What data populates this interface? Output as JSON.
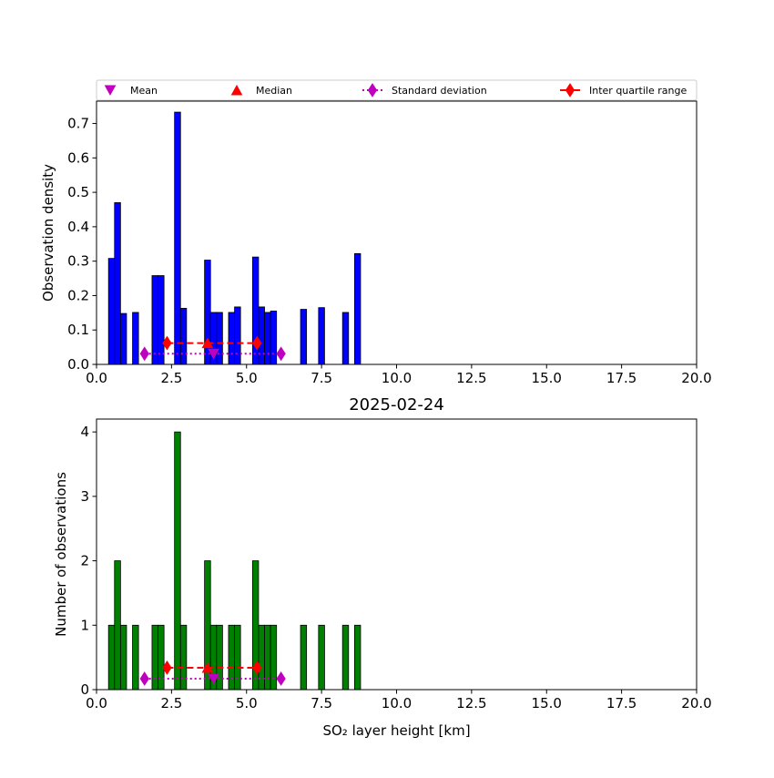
{
  "chart_data": [
    {
      "type": "bar",
      "panel": "top",
      "title": "",
      "xlabel": "",
      "ylabel": "Observation density",
      "xlim": [
        0,
        20
      ],
      "ylim": [
        0,
        0.765
      ],
      "xticks": [
        "0.0",
        "2.5",
        "5.0",
        "7.5",
        "10.0",
        "12.5",
        "15.0",
        "17.5",
        "20.0"
      ],
      "yticks": [
        "0.0",
        "0.1",
        "0.2",
        "0.3",
        "0.4",
        "0.5",
        "0.6",
        "0.7"
      ],
      "ytick_values": [
        0,
        0.1,
        0.2,
        0.3,
        0.4,
        0.5,
        0.6,
        0.7
      ],
      "bar_color": "#0000ff",
      "bars": [
        {
          "x": 0.5,
          "value": 0.308
        },
        {
          "x": 0.7,
          "value": 0.47
        },
        {
          "x": 0.9,
          "value": 0.148
        },
        {
          "x": 1.3,
          "value": 0.151
        },
        {
          "x": 1.95,
          "value": 0.258
        },
        {
          "x": 2.15,
          "value": 0.258
        },
        {
          "x": 2.7,
          "value": 0.733
        },
        {
          "x": 2.9,
          "value": 0.163
        },
        {
          "x": 3.7,
          "value": 0.303
        },
        {
          "x": 3.9,
          "value": 0.151
        },
        {
          "x": 4.1,
          "value": 0.151
        },
        {
          "x": 4.5,
          "value": 0.151
        },
        {
          "x": 4.7,
          "value": 0.167
        },
        {
          "x": 5.3,
          "value": 0.312
        },
        {
          "x": 5.5,
          "value": 0.167
        },
        {
          "x": 5.7,
          "value": 0.151
        },
        {
          "x": 5.9,
          "value": 0.155
        },
        {
          "x": 6.9,
          "value": 0.16
        },
        {
          "x": 7.5,
          "value": 0.165
        },
        {
          "x": 8.3,
          "value": 0.151
        },
        {
          "x": 8.7,
          "value": 0.322
        }
      ],
      "stats": {
        "mean": {
          "x": 3.9,
          "y": 0.031
        },
        "std": {
          "x": [
            1.6,
            6.15
          ],
          "y": 0.031
        },
        "median": {
          "x": 3.7,
          "y": 0.062
        },
        "iqr": {
          "x": [
            2.35,
            5.35
          ],
          "y": 0.062
        }
      }
    },
    {
      "type": "bar",
      "panel": "bottom",
      "title": "2025-02-24",
      "xlabel": "SO₂ layer height [km]",
      "ylabel": "Number of observations",
      "xlim": [
        0,
        20
      ],
      "ylim": [
        0,
        4.2
      ],
      "xticks": [
        "0.0",
        "2.5",
        "5.0",
        "7.5",
        "10.0",
        "12.5",
        "15.0",
        "17.5",
        "20.0"
      ],
      "yticks": [
        "0",
        "1",
        "2",
        "3",
        "4"
      ],
      "ytick_values": [
        0,
        1,
        2,
        3,
        4
      ],
      "bar_color": "#008000",
      "bars": [
        {
          "x": 0.5,
          "value": 1
        },
        {
          "x": 0.7,
          "value": 2
        },
        {
          "x": 0.9,
          "value": 1
        },
        {
          "x": 1.3,
          "value": 1
        },
        {
          "x": 1.95,
          "value": 1
        },
        {
          "x": 2.15,
          "value": 1
        },
        {
          "x": 2.7,
          "value": 4
        },
        {
          "x": 2.9,
          "value": 1
        },
        {
          "x": 3.7,
          "value": 2
        },
        {
          "x": 3.9,
          "value": 1
        },
        {
          "x": 4.1,
          "value": 1
        },
        {
          "x": 4.5,
          "value": 1
        },
        {
          "x": 4.7,
          "value": 1
        },
        {
          "x": 5.3,
          "value": 2
        },
        {
          "x": 5.5,
          "value": 1
        },
        {
          "x": 5.7,
          "value": 1
        },
        {
          "x": 5.9,
          "value": 1
        },
        {
          "x": 6.9,
          "value": 1
        },
        {
          "x": 7.5,
          "value": 1
        },
        {
          "x": 8.3,
          "value": 1
        },
        {
          "x": 8.7,
          "value": 1
        }
      ],
      "stats": {
        "mean": {
          "x": 3.9,
          "y": 0.17
        },
        "std": {
          "x": [
            1.6,
            6.15
          ],
          "y": 0.17
        },
        "median": {
          "x": 3.7,
          "y": 0.34
        },
        "iqr": {
          "x": [
            2.35,
            5.35
          ],
          "y": 0.34
        }
      }
    }
  ],
  "legend": {
    "placement": "top",
    "entries": [
      {
        "key": "mean",
        "label": "Mean",
        "marker": "triangle-down",
        "color": "#bf00bf"
      },
      {
        "key": "median",
        "label": "Median",
        "marker": "triangle-up",
        "color": "#ff0000"
      },
      {
        "key": "std",
        "label": "Standard deviation",
        "marker": "diamond-dotted",
        "color": "#bf00bf"
      },
      {
        "key": "iqr",
        "label": "Inter quartile range",
        "marker": "diamond-dashed",
        "color": "#ff0000"
      }
    ]
  }
}
